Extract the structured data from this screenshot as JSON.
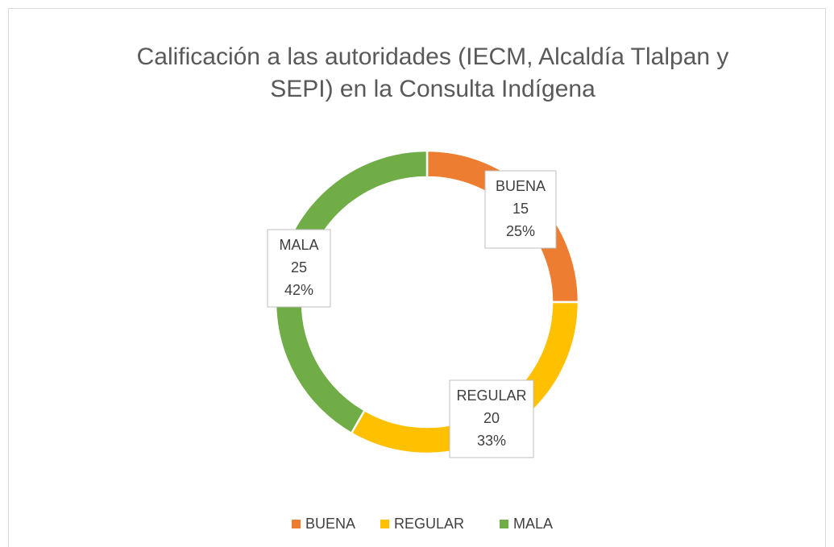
{
  "chart_data": {
    "type": "donut",
    "title": "Calificación a las autoridades (IECM, Alcaldía Tlalpan y SEPI) en la Consulta Indígena",
    "title_lines": [
      "Calificación a las autoridades (IECM, Alcaldía Tlalpan y",
      "SEPI) en la Consulta Indígena"
    ],
    "categories": [
      "BUENA",
      "REGULAR",
      "MALA"
    ],
    "values": [
      15,
      20,
      25
    ],
    "percent_labels": [
      "25%",
      "33%",
      "42%"
    ],
    "colors": [
      "#ED7D31",
      "#FFC000",
      "#70AD47"
    ],
    "legend": "bottom"
  }
}
